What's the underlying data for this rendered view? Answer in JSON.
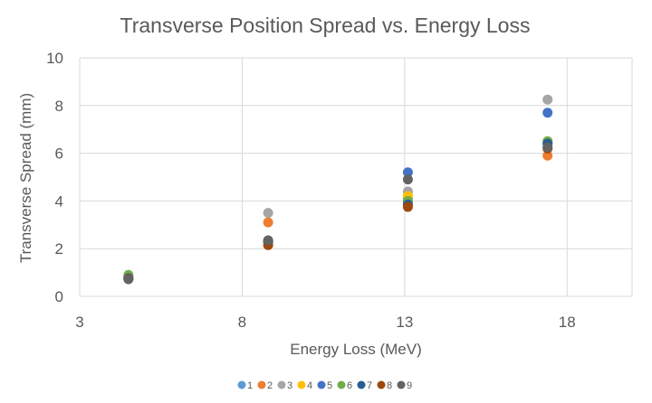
{
  "chart_data": {
    "type": "scatter",
    "title": "Transverse Position Spread vs. Energy Loss",
    "xlabel": "Energy Loss (MeV)",
    "ylabel": "Transverse Spread (mm)",
    "xlim": [
      3,
      20
    ],
    "ylim": [
      0,
      10
    ],
    "xticks": [
      3,
      8,
      13,
      18
    ],
    "yticks": [
      0,
      2,
      4,
      6,
      8,
      10
    ],
    "grid": true,
    "legend_position": "bottom",
    "series": [
      {
        "name": "1",
        "color": "#5b9bd5",
        "points": [
          [
            4.5,
            0.82
          ],
          [
            8.8,
            2.3
          ],
          [
            13.1,
            4.1
          ],
          [
            17.4,
            6.4
          ]
        ]
      },
      {
        "name": "2",
        "color": "#ed7d31",
        "points": [
          [
            4.5,
            0.78
          ],
          [
            8.8,
            3.1
          ],
          [
            13.1,
            3.95
          ],
          [
            17.4,
            5.9
          ]
        ]
      },
      {
        "name": "3",
        "color": "#a5a5a5",
        "points": [
          [
            4.5,
            0.8
          ],
          [
            8.8,
            3.5
          ],
          [
            13.1,
            4.4
          ],
          [
            17.4,
            8.25
          ]
        ]
      },
      {
        "name": "4",
        "color": "#ffc000",
        "points": [
          [
            4.5,
            0.8
          ],
          [
            8.8,
            2.3
          ],
          [
            13.1,
            4.2
          ],
          [
            17.4,
            6.5
          ]
        ]
      },
      {
        "name": "5",
        "color": "#4472c4",
        "points": [
          [
            4.5,
            0.76
          ],
          [
            8.8,
            2.3
          ],
          [
            13.1,
            5.2
          ],
          [
            17.4,
            7.7
          ]
        ]
      },
      {
        "name": "6",
        "color": "#70ad47",
        "points": [
          [
            4.5,
            0.9
          ],
          [
            8.8,
            2.3
          ],
          [
            13.1,
            4.0
          ],
          [
            17.4,
            6.5
          ]
        ]
      },
      {
        "name": "7",
        "color": "#255e91",
        "points": [
          [
            4.5,
            0.76
          ],
          [
            8.8,
            2.3
          ],
          [
            13.1,
            3.85
          ],
          [
            17.4,
            6.4
          ]
        ]
      },
      {
        "name": "8",
        "color": "#9e480e",
        "points": [
          [
            4.5,
            0.74
          ],
          [
            8.8,
            2.15
          ],
          [
            13.1,
            3.75
          ],
          [
            17.4,
            6.2
          ]
        ]
      },
      {
        "name": "9",
        "color": "#636363",
        "points": [
          [
            4.5,
            0.72
          ],
          [
            8.8,
            2.35
          ],
          [
            13.1,
            4.9
          ],
          [
            17.4,
            6.25
          ]
        ]
      }
    ]
  }
}
